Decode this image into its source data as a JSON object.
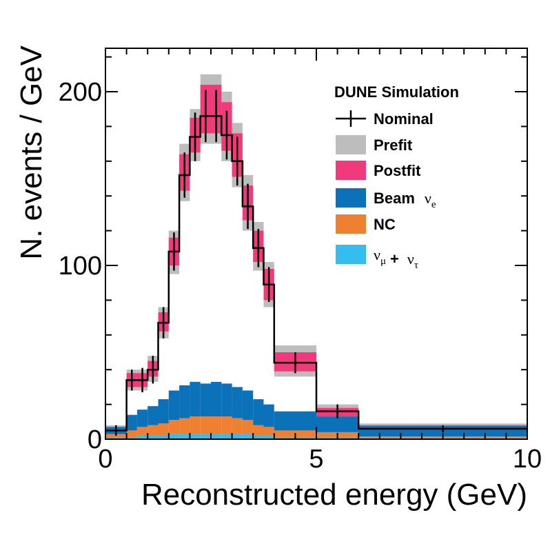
{
  "chart_data": {
    "type": "histogram",
    "xlabel": "Reconstructed energy (GeV)",
    "ylabel": "N. events / GeV",
    "xlim": [
      0,
      10
    ],
    "ylim": [
      0,
      225
    ],
    "x_ticks": [
      0,
      5,
      10
    ],
    "y_ticks": [
      0,
      100,
      200
    ],
    "annotation": "DUNE Simulation",
    "bin_edges": [
      0,
      0.5,
      0.75,
      1.0,
      1.25,
      1.5,
      1.75,
      2.0,
      2.25,
      2.5,
      2.75,
      3.0,
      3.25,
      3.5,
      3.75,
      4.0,
      5.0,
      6.0,
      10.0
    ],
    "nominal": [
      5,
      34,
      34,
      40,
      67,
      108,
      152,
      174,
      186,
      186,
      175,
      160,
      134,
      110,
      89,
      44,
      16,
      6
    ],
    "nominal_error": [
      3,
      6,
      7,
      8,
      9,
      11,
      13,
      14,
      15,
      15,
      14,
      14,
      13,
      11,
      10,
      6,
      4,
      2
    ],
    "prefit": [
      [
        2,
        8
      ],
      [
        28,
        40
      ],
      [
        28,
        40
      ],
      [
        33,
        48
      ],
      [
        58,
        76
      ],
      [
        95,
        120
      ],
      [
        137,
        170
      ],
      [
        160,
        190
      ],
      [
        170,
        210
      ],
      [
        170,
        210
      ],
      [
        160,
        200
      ],
      [
        145,
        182
      ],
      [
        120,
        152
      ],
      [
        97,
        125
      ],
      [
        76,
        102
      ],
      [
        36,
        54
      ],
      [
        12,
        20
      ],
      [
        4,
        9
      ]
    ],
    "postfit": [
      [
        3,
        7
      ],
      [
        30,
        38
      ],
      [
        30,
        38
      ],
      [
        36,
        45
      ],
      [
        62,
        73
      ],
      [
        100,
        116
      ],
      [
        143,
        164
      ],
      [
        165,
        185
      ],
      [
        176,
        204
      ],
      [
        176,
        204
      ],
      [
        166,
        194
      ],
      [
        151,
        176
      ],
      [
        126,
        146
      ],
      [
        102,
        120
      ],
      [
        80,
        98
      ],
      [
        39,
        50
      ],
      [
        13,
        18
      ],
      [
        5,
        8
      ]
    ],
    "beam_nue": [
      4,
      9,
      10,
      11,
      14,
      17,
      19,
      20,
      19,
      20,
      19,
      18,
      17,
      15,
      13,
      11,
      9,
      6
    ],
    "nc": [
      2,
      4,
      5,
      6,
      7,
      8,
      9,
      10,
      10,
      10,
      10,
      9,
      8,
      6,
      5,
      4,
      3,
      1
    ],
    "numu_nutau": [
      1,
      1,
      2,
      2,
      2,
      3,
      3,
      3,
      3,
      3,
      3,
      3,
      3,
      2,
      2,
      1,
      1,
      0.5
    ],
    "legend_position": "top-right",
    "legend": [
      {
        "key": "nominal",
        "label": "Nominal",
        "style": "cross"
      },
      {
        "key": "prefit",
        "label": "Prefit",
        "color": "#bdbdbd"
      },
      {
        "key": "postfit",
        "label": "Postfit",
        "color": "#ef3b7c"
      },
      {
        "key": "beam_nue",
        "label": "Beam",
        "sym": "ν",
        "sub": "e",
        "color": "#0b71b8"
      },
      {
        "key": "nc",
        "label": "NC",
        "color": "#ef7f31"
      },
      {
        "key": "numu_nutau",
        "label": "",
        "sym": "ν",
        "sub": "μ",
        "plus": "+",
        "sym2": "ν",
        "sub2": "τ",
        "color": "#35bdf0"
      }
    ]
  }
}
